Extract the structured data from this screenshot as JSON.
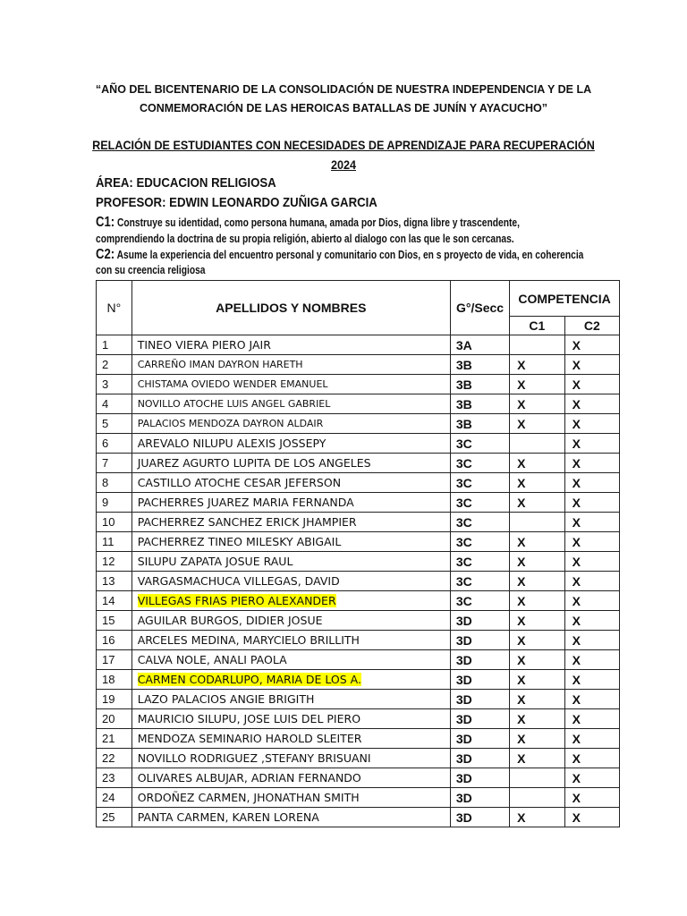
{
  "header": {
    "line1": "“AÑO DEL BICENTENARIO DE LA CONSOLIDACIÓN DE NUESTRA INDEPENDENCIA Y DE LA",
    "line2": "CONMEMORACIÓN DE LAS HEROICAS BATALLAS DE JUNÍN Y AYACUCHO”"
  },
  "title": {
    "line1": "RELACIÓN DE ESTUDIANTES CON NECESIDADES DE APRENDIZAJE PARA RECUPERACIÓN",
    "line2": "2024"
  },
  "area": "ÁREA: EDUCACION RELIGIOSA",
  "profesor": "PROFESOR: EDWIN LEONARDO ZUÑIGA GARCIA",
  "c1": {
    "label": "C1:",
    "line1": "Construye su identidad, como persona humana, amada por Dios, digna libre y trascendente,",
    "line2": "comprendiendo la doctrina de su propia religión, abierto al dialogo con las que le son cercanas."
  },
  "c2": {
    "label": "C2:",
    "line1": "Asume la experiencia del encuentro personal y comunitario con Dios, en s proyecto de vida, en coherencia",
    "line2": "con su creencia religiosa"
  },
  "table": {
    "headers": {
      "num": "N°",
      "name": "APELLIDOS Y NOMBRES",
      "grade": "G°/Secc",
      "competencia": "COMPETENCIA",
      "c1": "C1",
      "c2": "C2"
    },
    "rows": [
      {
        "n": "1",
        "name": "TINEO VIERA PIERO JAIR",
        "g": "3A",
        "c1": "",
        "c2": "X"
      },
      {
        "n": "2",
        "name": "CARREÑO IMAN DAYRON HARETH",
        "g": "3B",
        "c1": "X",
        "c2": "X",
        "small": true
      },
      {
        "n": "3",
        "name": "CHISTAMA OVIEDO WENDER EMANUEL",
        "g": "3B",
        "c1": "X",
        "c2": "X",
        "small": true
      },
      {
        "n": "4",
        "name": "NOVILLO ATOCHE LUIS ANGEL GABRIEL",
        "g": "3B",
        "c1": "X",
        "c2": "X",
        "small": true
      },
      {
        "n": "5",
        "name": "PALACIOS MENDOZA DAYRON ALDAIR",
        "g": "3B",
        "c1": "X",
        "c2": "X",
        "small": true
      },
      {
        "n": "6",
        "name": "AREVALO NILUPU ALEXIS JOSSEPY",
        "g": "3C",
        "c1": "",
        "c2": "X"
      },
      {
        "n": "7",
        "name": "JUAREZ AGURTO LUPITA DE LOS ANGELES",
        "g": "3C",
        "c1": "X",
        "c2": "X"
      },
      {
        "n": "8",
        "name": "CASTILLO ATOCHE CESAR JEFERSON",
        "g": "3C",
        "c1": "X",
        "c2": "X"
      },
      {
        "n": "9",
        "name": "PACHERRES JUAREZ MARIA FERNANDA",
        "g": "3C",
        "c1": "X",
        "c2": "X"
      },
      {
        "n": "10",
        "name": "PACHERREZ SANCHEZ ERICK JHAMPIER",
        "g": "3C",
        "c1": "",
        "c2": "X"
      },
      {
        "n": "11",
        "name": "PACHERREZ TINEO MILESKY ABIGAIL",
        "g": "3C",
        "c1": "X",
        "c2": "X"
      },
      {
        "n": "12",
        "name": "SILUPU ZAPATA JOSUE RAUL",
        "g": "3C",
        "c1": "X",
        "c2": "X"
      },
      {
        "n": "13",
        "name": "VARGASMACHUCA VILLEGAS, DAVID",
        "g": "3C",
        "c1": "X",
        "c2": "X"
      },
      {
        "n": "14",
        "name": "VILLEGAS FRIAS PIERO ALEXANDER",
        "g": "3C",
        "c1": "X",
        "c2": "X",
        "highlight": true
      },
      {
        "n": "15",
        "name": "AGUILAR BURGOS, DIDIER JOSUE",
        "g": "3D",
        "c1": "X",
        "c2": "X"
      },
      {
        "n": "16",
        "name": "ARCELES MEDINA, MARYCIELO BRILLITH",
        "g": "3D",
        "c1": "X",
        "c2": "X"
      },
      {
        "n": "17",
        "name": "CALVA NOLE, ANALI PAOLA",
        "g": "3D",
        "c1": "X",
        "c2": "X"
      },
      {
        "n": "18",
        "name": "CARMEN CODARLUPO, MARIA DE LOS A.",
        "g": "3D",
        "c1": "X",
        "c2": "X",
        "highlight": true
      },
      {
        "n": "19",
        "name": "LAZO PALACIOS ANGIE BRIGITH",
        "g": "3D",
        "c1": "X",
        "c2": "X"
      },
      {
        "n": "20",
        "name": "MAURICIO SILUPU, JOSE LUIS DEL PIERO",
        "g": "3D",
        "c1": "X",
        "c2": "X"
      },
      {
        "n": "21",
        "name": "MENDOZA SEMINARIO HAROLD SLEITER",
        "g": "3D",
        "c1": "X",
        "c2": "X"
      },
      {
        "n": "22",
        "name": "NOVILLO RODRIGUEZ ,STEFANY BRISUANI",
        "g": "3D",
        "c1": "X",
        "c2": "X"
      },
      {
        "n": "23",
        "name": "OLIVARES ALBUJAR, ADRIAN FERNANDO",
        "g": "3D",
        "c1": "",
        "c2": "X"
      },
      {
        "n": "24",
        "name": "ORDOÑEZ CARMEN, JHONATHAN SMITH",
        "g": "3D",
        "c1": "",
        "c2": "X"
      },
      {
        "n": "25",
        "name": "PANTA CARMEN, KAREN LORENA",
        "g": "3D",
        "c1": "X",
        "c2": "X"
      }
    ]
  },
  "colors": {
    "highlight": "#ffff00"
  }
}
